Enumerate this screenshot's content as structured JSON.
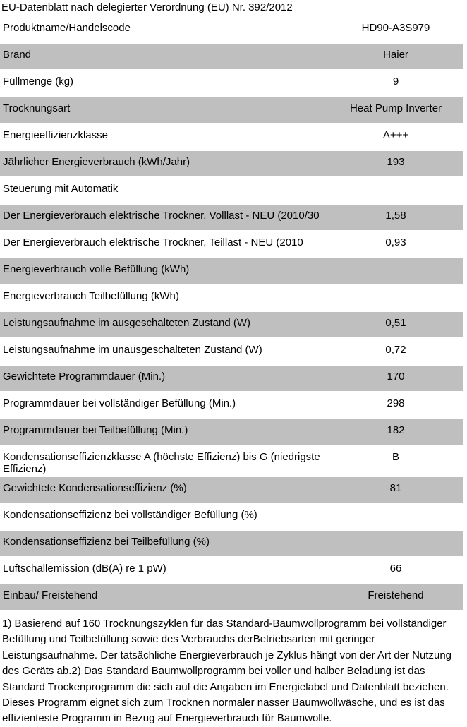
{
  "page": {
    "title": "EU-Datenblatt nach delegierter Verordnung (EU) Nr. 392/2012"
  },
  "colors": {
    "background": "#ffffff",
    "row_shaded": "#bfbfbf",
    "text": "#000000"
  },
  "table": {
    "rows": [
      {
        "label": "Produktname/Handelscode",
        "value": "HD90-A3S979",
        "shaded": false
      },
      {
        "label": "Brand",
        "value": "Haier",
        "shaded": true
      },
      {
        "label": "Füllmenge (kg)",
        "value": "9",
        "shaded": false
      },
      {
        "label": "Trocknungsart",
        "value": "Heat Pump Inverter",
        "shaded": true
      },
      {
        "label": "Energieeffizienzklasse",
        "value": "A+++",
        "shaded": false
      },
      {
        "label": "Jährlicher Energieverbrauch (kWh/Jahr)",
        "value": "193",
        "shaded": true
      },
      {
        "label": "Steuerung mit Automatik",
        "value": "",
        "shaded": false
      },
      {
        "label": "Der Energieverbrauch elektrische Trockner, Volllast - NEU (2010/30",
        "value": "1,58",
        "shaded": true
      },
      {
        "label": "Der Energieverbrauch elektrische Trockner, Teillast - NEU (2010",
        "value": "0,93",
        "shaded": false
      },
      {
        "label": "Energieverbrauch volle Befüllung (kWh)",
        "value": "",
        "shaded": true
      },
      {
        "label": "Energieverbrauch Teilbefüllung (kWh)",
        "value": "",
        "shaded": false
      },
      {
        "label": "Leistungsaufnahme im ausgeschalteten Zustand (W)",
        "value": "0,51",
        "shaded": true
      },
      {
        "label": "Leistungsaufnahme im unausgeschalteten Zustand (W)",
        "value": "0,72",
        "shaded": false
      },
      {
        "label": "Gewichtete Programmdauer (Min.)",
        "value": "170",
        "shaded": true
      },
      {
        "label": "Programmdauer bei vollständiger Befüllung (Min.)",
        "value": "298",
        "shaded": false
      },
      {
        "label": "Programmdauer bei Teilbefüllung (Min.)",
        "value": "182",
        "shaded": true
      },
      {
        "label": "Kondensationseffizienzklasse A (höchste Effizienz) bis G (niedrigste Effizienz)",
        "value": "B",
        "shaded": false
      },
      {
        "label": "Gewichtete Kondensationseffizienz (%)",
        "value": "81",
        "shaded": true
      },
      {
        "label": "Kondensationseffizienz bei vollständiger Befüllung (%)",
        "value": "",
        "shaded": false
      },
      {
        "label": "Kondensationseffizienz bei Teilbefüllung (%)",
        "value": "",
        "shaded": true
      },
      {
        "label": "Luftschallemission (dB(A) re 1 pW)",
        "value": "66",
        "shaded": false
      },
      {
        "label": "Einbau/ Freistehend",
        "value": "Freistehend",
        "shaded": true
      }
    ]
  },
  "footnote": "1) Basierend auf 160 Trocknungszyklen für das Standard-Baumwollprogramm bei vollständiger Befüllung und Teilbefüllung sowie des Verbrauchs derBetriebsarten mit geringer Leistungsaufnahme. Der tatsächliche Energieverbrauch je Zyklus hängt von der Art der Nutzung des Geräts ab.2) Das Standard Baumwollprogramm bei voller und halber Beladung ist das Standard Trockenprogramm die sich auf die Angaben im Energielabel und Datenblatt beziehen. Dieses Programm eignet sich zum Trocknen normaler nasser Baumwollwäsche, und es ist das effizienteste Programm in Bezug auf Energieverbrauch für Baumwolle."
}
